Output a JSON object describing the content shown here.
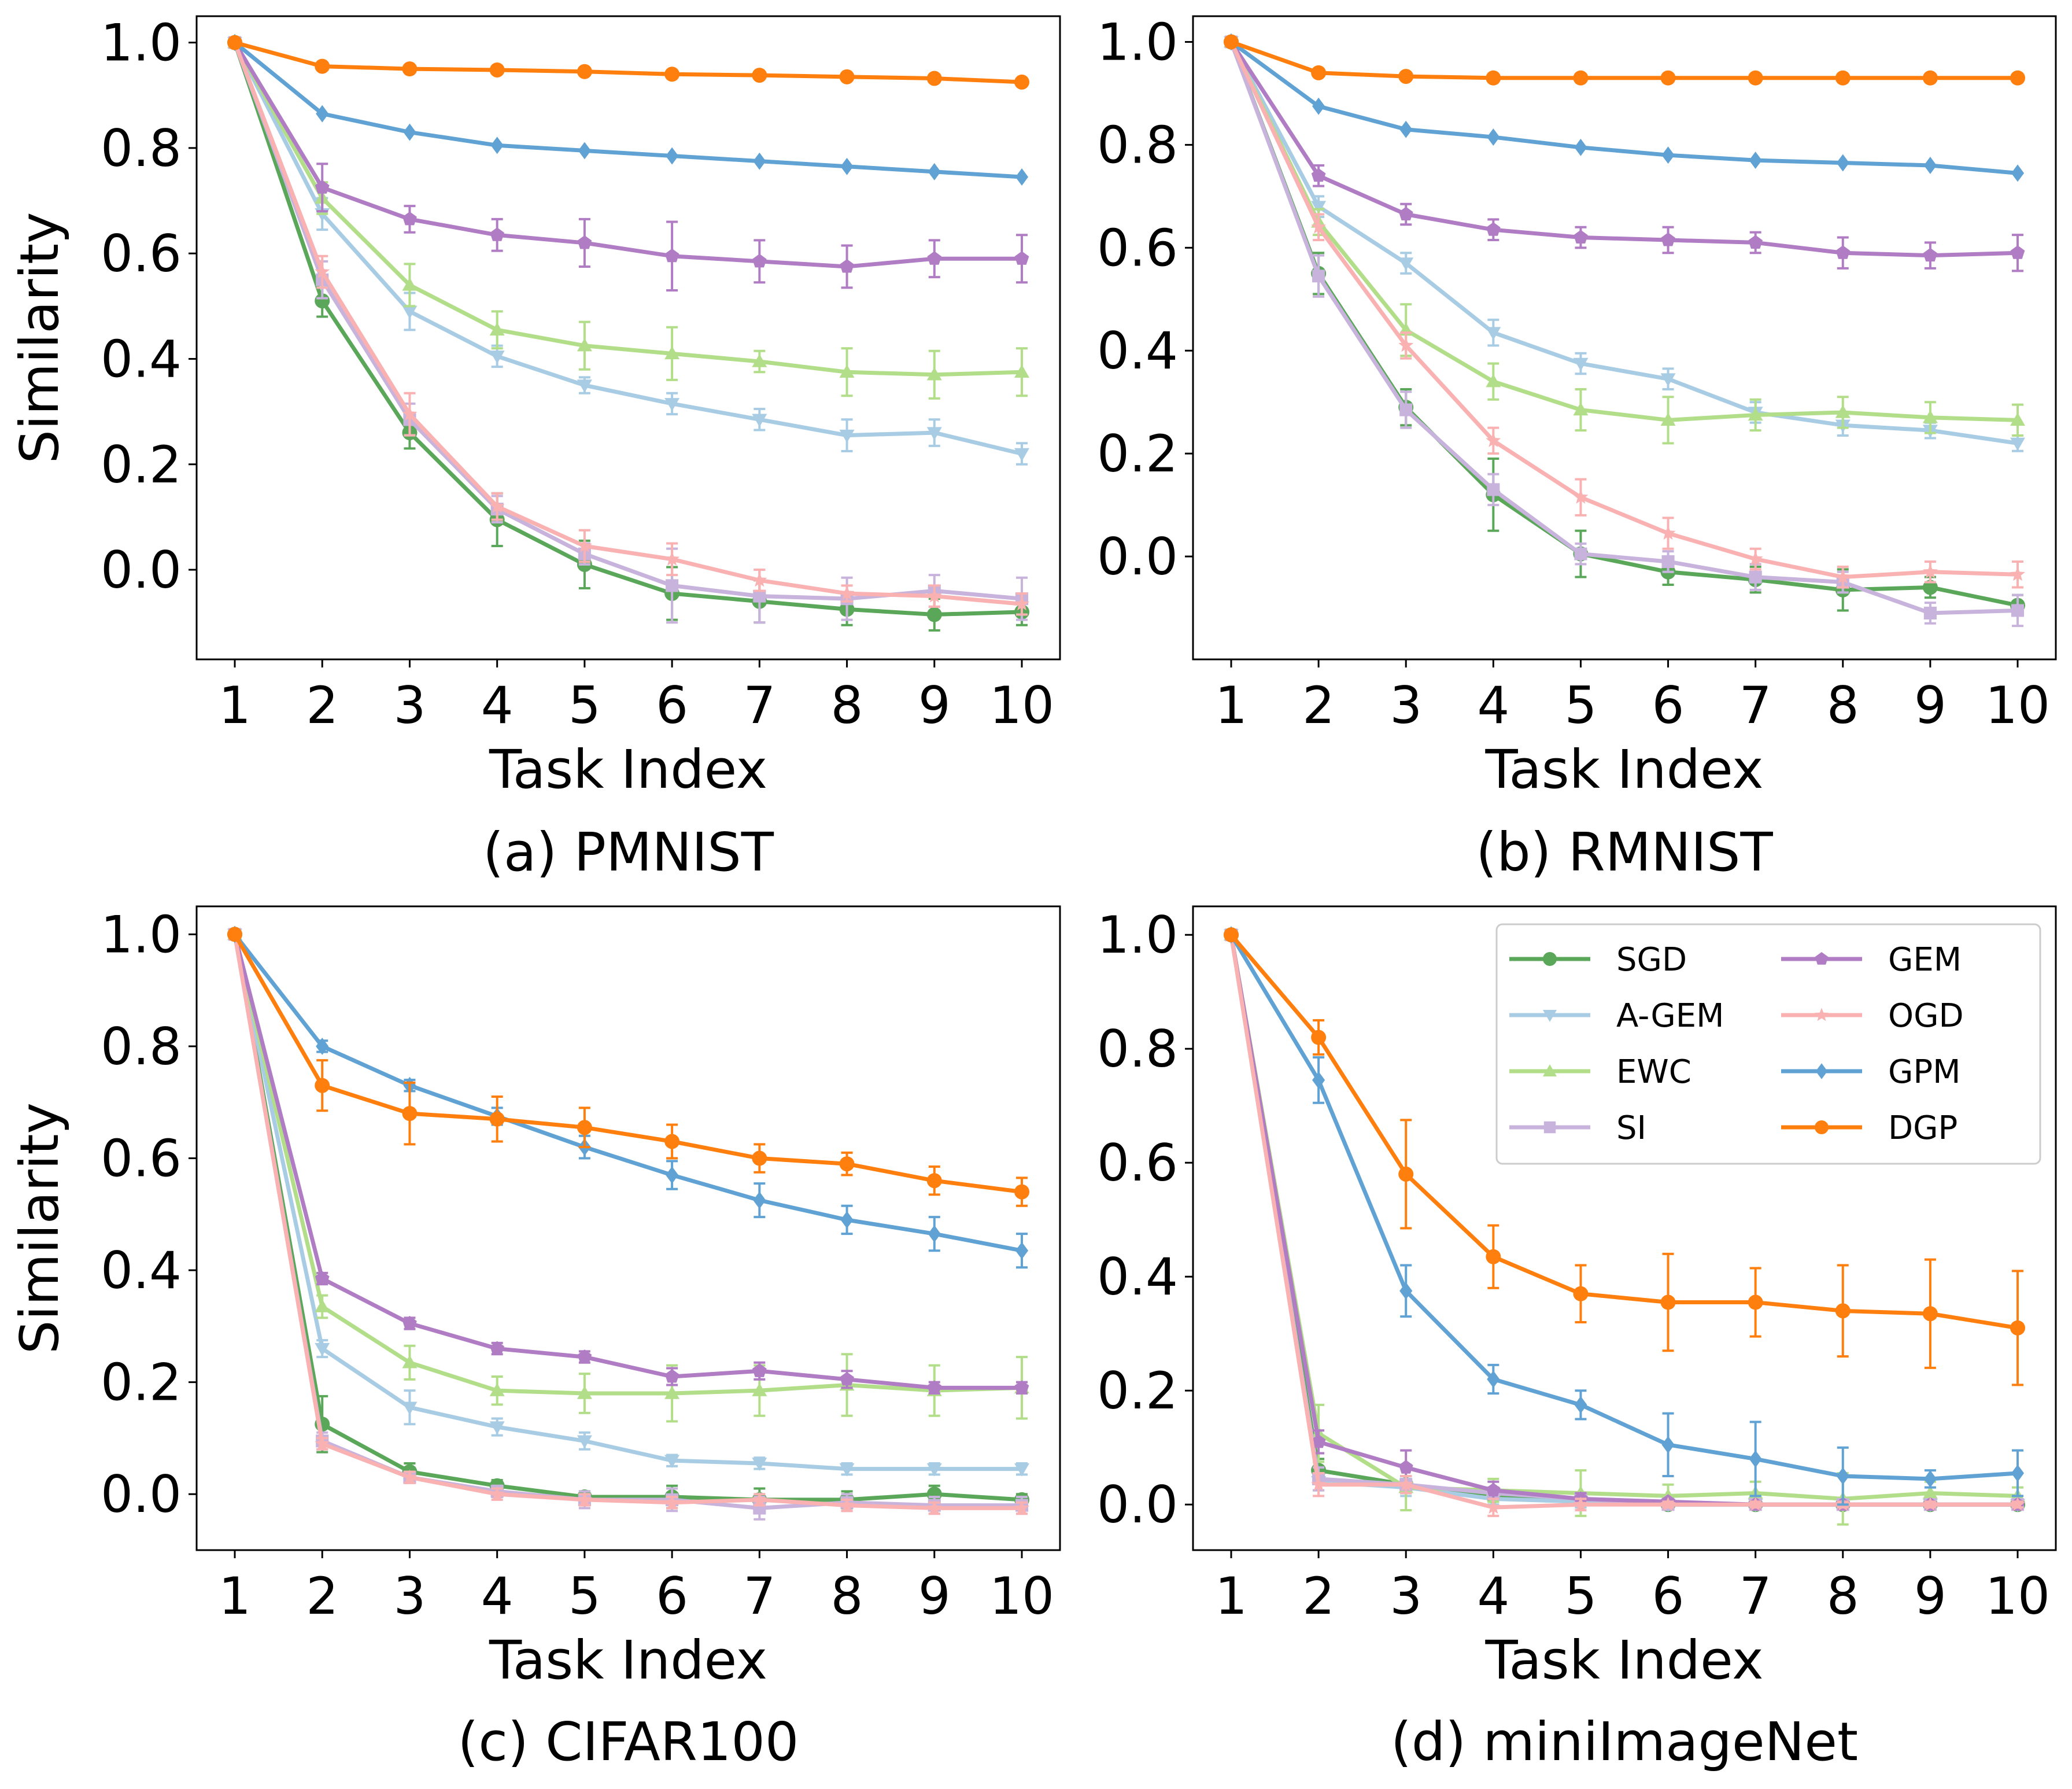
{
  "figure": {
    "ylabel": "Similarity",
    "xlabel": "Task Index"
  },
  "legend": {
    "location": "upper right (panel d)",
    "ncol": 2
  },
  "chart_data": [
    {
      "type": "line",
      "panel": "a",
      "caption": "(a) PMNIST",
      "xlabel": "Task Index",
      "ylabel": "Similarity",
      "x": [
        1,
        2,
        3,
        4,
        5,
        6,
        7,
        8,
        9,
        10
      ],
      "ylim": [
        -0.17,
        1.05
      ],
      "yticks": [
        "0.0",
        "0.2",
        "0.4",
        "0.6",
        "0.8",
        "1.0"
      ],
      "xticks": [
        "1",
        "2",
        "3",
        "4",
        "5",
        "6",
        "7",
        "8",
        "9",
        "10"
      ],
      "grid": false,
      "series": [
        {
          "name": "SGD",
          "values": [
            1.0,
            0.51,
            0.26,
            0.095,
            0.01,
            -0.045,
            -0.06,
            -0.075,
            -0.085,
            -0.08
          ],
          "err": [
            0,
            0.03,
            0.03,
            0.05,
            0.045,
            0.05,
            0.04,
            0.03,
            0.03,
            0.025
          ]
        },
        {
          "name": "A-GEM",
          "values": [
            1.0,
            0.675,
            0.49,
            0.405,
            0.35,
            0.315,
            0.285,
            0.255,
            0.26,
            0.22
          ],
          "err": [
            0,
            0.03,
            0.035,
            0.02,
            0.015,
            0.02,
            0.02,
            0.03,
            0.025,
            0.02
          ]
        },
        {
          "name": "EWC",
          "values": [
            1.0,
            0.705,
            0.54,
            0.455,
            0.425,
            0.41,
            0.395,
            0.375,
            0.37,
            0.375
          ],
          "err": [
            0,
            0.03,
            0.04,
            0.035,
            0.045,
            0.05,
            0.02,
            0.045,
            0.045,
            0.045
          ]
        },
        {
          "name": "SI",
          "values": [
            1.0,
            0.55,
            0.285,
            0.115,
            0.03,
            -0.03,
            -0.05,
            -0.055,
            -0.04,
            -0.055
          ],
          "err": [
            0,
            0.035,
            0.03,
            0.025,
            0.02,
            0.07,
            0.05,
            0.04,
            0.03,
            0.04
          ]
        },
        {
          "name": "GEM",
          "values": [
            1.0,
            0.725,
            0.665,
            0.635,
            0.62,
            0.595,
            0.585,
            0.575,
            0.59,
            0.59
          ],
          "err": [
            0,
            0.045,
            0.025,
            0.03,
            0.045,
            0.065,
            0.04,
            0.04,
            0.035,
            0.045
          ]
        },
        {
          "name": "OGD",
          "values": [
            1.0,
            0.565,
            0.295,
            0.12,
            0.045,
            0.02,
            -0.02,
            -0.045,
            -0.05,
            -0.065
          ],
          "err": [
            0,
            0.03,
            0.04,
            0.025,
            0.03,
            0.03,
            0.02,
            0.015,
            0.02,
            0.02
          ]
        },
        {
          "name": "GPM",
          "values": [
            1.0,
            0.865,
            0.83,
            0.805,
            0.795,
            0.785,
            0.775,
            0.765,
            0.755,
            0.745
          ],
          "err": [
            0,
            0,
            0,
            0,
            0,
            0,
            0,
            0,
            0,
            0
          ]
        },
        {
          "name": "DGP",
          "values": [
            1.0,
            0.955,
            0.95,
            0.948,
            0.945,
            0.94,
            0.938,
            0.935,
            0.932,
            0.925
          ],
          "err": [
            0,
            0,
            0,
            0,
            0,
            0,
            0,
            0,
            0,
            0
          ]
        }
      ]
    },
    {
      "type": "line",
      "panel": "b",
      "caption": "(b) RMNIST",
      "xlabel": "Task Index",
      "ylabel": "",
      "x": [
        1,
        2,
        3,
        4,
        5,
        6,
        7,
        8,
        9,
        10
      ],
      "ylim": [
        -0.2,
        1.05
      ],
      "yticks": [
        "0.0",
        "0.2",
        "0.4",
        "0.6",
        "0.8",
        "1.0"
      ],
      "xticks": [
        "1",
        "2",
        "3",
        "4",
        "5",
        "6",
        "7",
        "8",
        "9",
        "10"
      ],
      "grid": false,
      "series": [
        {
          "name": "SGD",
          "values": [
            1.0,
            0.55,
            0.29,
            0.12,
            0.005,
            -0.03,
            -0.045,
            -0.065,
            -0.06,
            -0.095
          ],
          "err": [
            0,
            0.04,
            0.035,
            0.07,
            0.045,
            0.025,
            0.025,
            0.04,
            0.02,
            0.02
          ]
        },
        {
          "name": "A-GEM",
          "values": [
            1.0,
            0.68,
            0.57,
            0.435,
            0.375,
            0.345,
            0.28,
            0.255,
            0.245,
            0.22
          ],
          "err": [
            0,
            0.02,
            0.02,
            0.025,
            0.02,
            0.02,
            0.02,
            0.02,
            0.015,
            0.015
          ]
        },
        {
          "name": "EWC",
          "values": [
            1.0,
            0.65,
            0.44,
            0.34,
            0.285,
            0.265,
            0.275,
            0.28,
            0.27,
            0.265
          ],
          "err": [
            0,
            0.025,
            0.05,
            0.035,
            0.04,
            0.045,
            0.03,
            0.03,
            0.03,
            0.03
          ]
        },
        {
          "name": "SI",
          "values": [
            1.0,
            0.545,
            0.285,
            0.13,
            0.005,
            -0.01,
            -0.04,
            -0.05,
            -0.11,
            -0.105
          ],
          "err": [
            0,
            0.04,
            0.035,
            0.03,
            0.02,
            0.02,
            0.025,
            0.02,
            0.02,
            0.03
          ]
        },
        {
          "name": "GEM",
          "values": [
            1.0,
            0.74,
            0.665,
            0.635,
            0.62,
            0.615,
            0.61,
            0.59,
            0.585,
            0.59
          ],
          "err": [
            0,
            0.02,
            0.02,
            0.02,
            0.02,
            0.025,
            0.02,
            0.03,
            0.025,
            0.035
          ]
        },
        {
          "name": "OGD",
          "values": [
            1.0,
            0.64,
            0.41,
            0.225,
            0.115,
            0.045,
            -0.005,
            -0.04,
            -0.03,
            -0.035
          ],
          "err": [
            0,
            0.025,
            0.025,
            0.025,
            0.035,
            0.03,
            0.02,
            0.02,
            0.02,
            0.025
          ]
        },
        {
          "name": "GPM",
          "values": [
            1.0,
            0.875,
            0.83,
            0.815,
            0.795,
            0.78,
            0.77,
            0.765,
            0.76,
            0.745
          ],
          "err": [
            0,
            0,
            0,
            0,
            0,
            0,
            0,
            0,
            0,
            0
          ]
        },
        {
          "name": "DGP",
          "values": [
            1.0,
            0.94,
            0.933,
            0.93,
            0.93,
            0.93,
            0.93,
            0.93,
            0.93,
            0.93
          ],
          "err": [
            0,
            0,
            0,
            0,
            0,
            0,
            0,
            0,
            0,
            0
          ]
        }
      ]
    },
    {
      "type": "line",
      "panel": "c",
      "caption": "(c) CIFAR100",
      "xlabel": "Task Index",
      "ylabel": "Similarity",
      "x": [
        1,
        2,
        3,
        4,
        5,
        6,
        7,
        8,
        9,
        10
      ],
      "ylim": [
        -0.1,
        1.05
      ],
      "yticks": [
        "0.0",
        "0.2",
        "0.4",
        "0.6",
        "0.8",
        "1.0"
      ],
      "xticks": [
        "1",
        "2",
        "3",
        "4",
        "5",
        "6",
        "7",
        "8",
        "9",
        "10"
      ],
      "grid": false,
      "series": [
        {
          "name": "SGD",
          "values": [
            1.0,
            0.125,
            0.04,
            0.015,
            -0.005,
            -0.005,
            -0.01,
            -0.01,
            0.0,
            -0.01
          ],
          "err": [
            0,
            0.05,
            0.015,
            0.01,
            0.01,
            0.02,
            0.02,
            0.015,
            0.015,
            0.01
          ]
        },
        {
          "name": "A-GEM",
          "values": [
            1.0,
            0.26,
            0.155,
            0.12,
            0.095,
            0.06,
            0.055,
            0.045,
            0.045,
            0.045
          ],
          "err": [
            0,
            0.015,
            0.03,
            0.015,
            0.015,
            0.01,
            0.01,
            0.01,
            0.01,
            0.01
          ]
        },
        {
          "name": "EWC",
          "values": [
            1.0,
            0.335,
            0.235,
            0.185,
            0.18,
            0.18,
            0.185,
            0.195,
            0.185,
            0.19
          ],
          "err": [
            0,
            0.02,
            0.03,
            0.025,
            0.035,
            0.05,
            0.045,
            0.055,
            0.045,
            0.055
          ]
        },
        {
          "name": "SI",
          "values": [
            1.0,
            0.095,
            0.03,
            0.005,
            -0.01,
            -0.01,
            -0.025,
            -0.015,
            -0.02,
            -0.02
          ],
          "err": [
            0,
            0.015,
            0.01,
            0.01,
            0.015,
            0.02,
            0.02,
            0.015,
            0.015,
            0.015
          ]
        },
        {
          "name": "GEM",
          "values": [
            1.0,
            0.385,
            0.305,
            0.26,
            0.245,
            0.21,
            0.22,
            0.205,
            0.19,
            0.19
          ],
          "err": [
            0,
            0.01,
            0.01,
            0.01,
            0.01,
            0.015,
            0.015,
            0.015,
            0.01,
            0.01
          ]
        },
        {
          "name": "OGD",
          "values": [
            1.0,
            0.09,
            0.03,
            0.0,
            -0.01,
            -0.015,
            -0.01,
            -0.02,
            -0.025,
            -0.025
          ],
          "err": [
            0,
            0.01,
            0.01,
            0.01,
            0.01,
            0.01,
            0.01,
            0.01,
            0.01,
            0.01
          ]
        },
        {
          "name": "GPM",
          "values": [
            1.0,
            0.8,
            0.73,
            0.675,
            0.62,
            0.57,
            0.525,
            0.49,
            0.465,
            0.435
          ],
          "err": [
            0,
            0.01,
            0.01,
            0.015,
            0.02,
            0.025,
            0.03,
            0.025,
            0.03,
            0.03
          ]
        },
        {
          "name": "DGP",
          "values": [
            1.0,
            0.73,
            0.68,
            0.67,
            0.655,
            0.63,
            0.6,
            0.59,
            0.56,
            0.54
          ],
          "err": [
            0,
            0.045,
            0.055,
            0.04,
            0.035,
            0.03,
            0.025,
            0.02,
            0.025,
            0.025
          ]
        }
      ]
    },
    {
      "type": "line",
      "panel": "d",
      "caption": "(d) miniImageNet",
      "xlabel": "Task Index",
      "ylabel": "",
      "x": [
        1,
        2,
        3,
        4,
        5,
        6,
        7,
        8,
        9,
        10
      ],
      "ylim": [
        -0.08,
        1.05
      ],
      "yticks": [
        "0.0",
        "0.2",
        "0.4",
        "0.6",
        "0.8",
        "1.0"
      ],
      "xticks": [
        "1",
        "2",
        "3",
        "4",
        "5",
        "6",
        "7",
        "8",
        "9",
        "10"
      ],
      "grid": false,
      "series": [
        {
          "name": "SGD",
          "values": [
            1.0,
            0.06,
            0.035,
            0.015,
            0.005,
            0.0,
            0.0,
            0.0,
            0.0,
            0.0
          ],
          "err": [
            0,
            0.02,
            0.015,
            0.01,
            0.01,
            0.005,
            0.005,
            0.005,
            0.005,
            0.005
          ]
        },
        {
          "name": "A-GEM",
          "values": [
            1.0,
            0.04,
            0.03,
            0.01,
            0.005,
            0.0,
            0.0,
            0.0,
            0.0,
            0.0
          ],
          "err": [
            0,
            0.015,
            0.015,
            0.01,
            0.01,
            0.005,
            0.005,
            0.005,
            0.005,
            0.005
          ]
        },
        {
          "name": "EWC",
          "values": [
            1.0,
            0.125,
            0.03,
            0.025,
            0.02,
            0.015,
            0.02,
            0.01,
            0.02,
            0.015
          ],
          "err": [
            0,
            0.05,
            0.04,
            0.02,
            0.04,
            0.02,
            0.02,
            0.045,
            0.02,
            0.015
          ]
        },
        {
          "name": "SI",
          "values": [
            1.0,
            0.045,
            0.035,
            0.02,
            0.01,
            0.0,
            0.0,
            0.0,
            0.0,
            0.0
          ],
          "err": [
            0,
            0.02,
            0.015,
            0.01,
            0.01,
            0.005,
            0.005,
            0.005,
            0.005,
            0.005
          ]
        },
        {
          "name": "GEM",
          "values": [
            1.0,
            0.11,
            0.065,
            0.025,
            0.01,
            0.005,
            0.0,
            0.0,
            0.0,
            0.0
          ],
          "err": [
            0,
            0.02,
            0.03,
            0.015,
            0.01,
            0.005,
            0.005,
            0.005,
            0.005,
            0.005
          ]
        },
        {
          "name": "OGD",
          "values": [
            1.0,
            0.035,
            0.035,
            -0.005,
            0.0,
            0.0,
            0.0,
            0.0,
            0.0,
            0.0
          ],
          "err": [
            0,
            0.02,
            0.015,
            0.015,
            0.01,
            0.005,
            0.005,
            0.005,
            0.005,
            0.005
          ]
        },
        {
          "name": "GPM",
          "values": [
            1.0,
            0.745,
            0.375,
            0.22,
            0.175,
            0.105,
            0.08,
            0.05,
            0.045,
            0.055
          ],
          "err": [
            0,
            0.04,
            0.045,
            0.025,
            0.025,
            0.055,
            0.065,
            0.05,
            0.015,
            0.04
          ]
        },
        {
          "name": "DGP",
          "values": [
            1.0,
            0.82,
            0.58,
            0.435,
            0.37,
            0.355,
            0.355,
            0.34,
            0.335,
            0.31
          ],
          "err": [
            0,
            0.03,
            0.095,
            0.055,
            0.05,
            0.085,
            0.06,
            0.08,
            0.095,
            0.1
          ]
        }
      ]
    }
  ],
  "styles": {
    "SGD": {
      "color": "#5aa75a",
      "marker": "circle"
    },
    "A-GEM": {
      "color": "#a8cce4",
      "marker": "triangle-down"
    },
    "EWC": {
      "color": "#b2de8a",
      "marker": "triangle-up"
    },
    "SI": {
      "color": "#c8b3dc",
      "marker": "square"
    },
    "GEM": {
      "color": "#b07cc4",
      "marker": "pentagon"
    },
    "OGD": {
      "color": "#f9b1b1",
      "marker": "star"
    },
    "GPM": {
      "color": "#5fa2d3",
      "marker": "diamond"
    },
    "DGP": {
      "color": "#ff7f0e",
      "marker": "circle"
    }
  }
}
